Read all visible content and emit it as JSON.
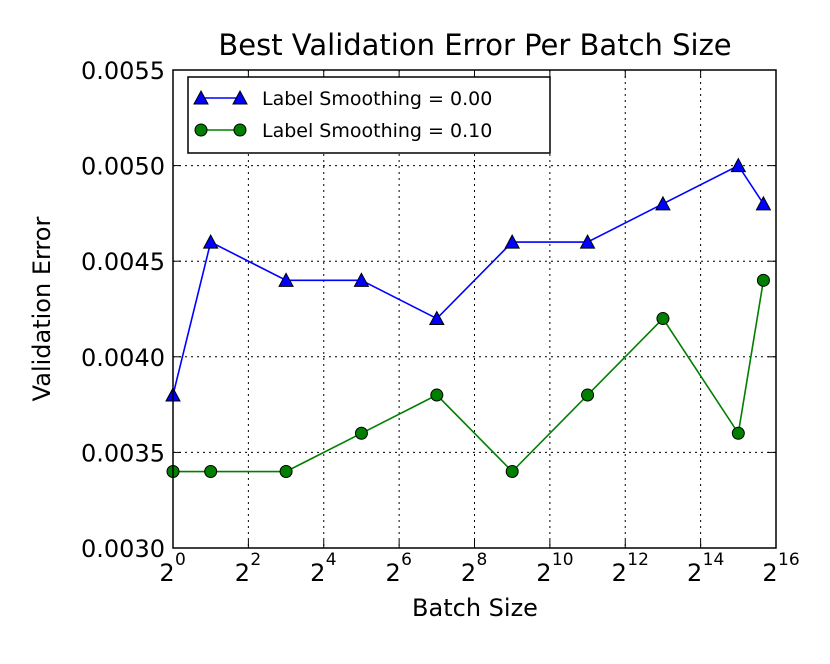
{
  "chart_data": {
    "type": "line",
    "title": "Best Validation Error Per Batch Size",
    "xlabel": "Batch Size",
    "ylabel": "Validation Error",
    "x_scale": "log2",
    "xlim": [
      1,
      65536
    ],
    "ylim": [
      0.003,
      0.0055
    ],
    "grid": true,
    "legend_position": "top-left",
    "x_ticks": [
      {
        "value": 1,
        "base": "2",
        "exp": "0"
      },
      {
        "value": 4,
        "base": "2",
        "exp": "2"
      },
      {
        "value": 16,
        "base": "2",
        "exp": "4"
      },
      {
        "value": 64,
        "base": "2",
        "exp": "6"
      },
      {
        "value": 256,
        "base": "2",
        "exp": "8"
      },
      {
        "value": 1024,
        "base": "2",
        "exp": "10"
      },
      {
        "value": 4096,
        "base": "2",
        "exp": "12"
      },
      {
        "value": 16384,
        "base": "2",
        "exp": "14"
      },
      {
        "value": 65536,
        "base": "2",
        "exp": "16"
      }
    ],
    "y_ticks": [
      {
        "value": 0.003,
        "label": "0.0030"
      },
      {
        "value": 0.0035,
        "label": "0.0035"
      },
      {
        "value": 0.004,
        "label": "0.0040"
      },
      {
        "value": 0.0045,
        "label": "0.0045"
      },
      {
        "value": 0.005,
        "label": "0.0050"
      },
      {
        "value": 0.0055,
        "label": "0.0055"
      }
    ],
    "x": [
      1,
      2,
      8,
      32,
      128,
      512,
      2048,
      8192,
      32768,
      52000
    ],
    "series": [
      {
        "name": "Label Smoothing = 0.00",
        "color": "#0000ff",
        "marker": "triangle",
        "values": [
          0.0038,
          0.0046,
          0.0044,
          0.0044,
          0.0042,
          0.0046,
          0.0046,
          0.0048,
          0.005,
          0.0048
        ]
      },
      {
        "name": "Label Smoothing = 0.10",
        "color": "#007f00",
        "marker": "circle",
        "values": [
          0.0034,
          0.0034,
          0.0034,
          0.0036,
          0.0038,
          0.0034,
          0.0038,
          0.0042,
          0.0036,
          0.0044
        ]
      }
    ]
  }
}
